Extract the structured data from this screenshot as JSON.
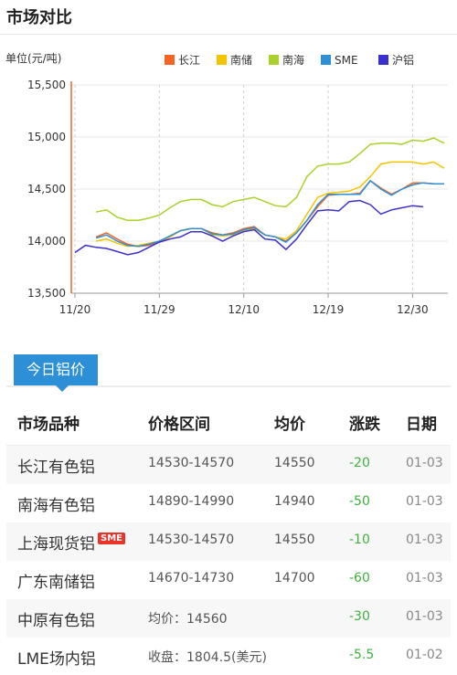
{
  "header": {
    "title": "市场对比"
  },
  "chart_data": {
    "type": "line",
    "unit_label": "单位(元/吨)",
    "yticks": [
      "15,500",
      "15,000",
      "14,500",
      "14,000",
      "13,500"
    ],
    "ylim": [
      13500,
      15500
    ],
    "xticks": [
      {
        "label": "11/20",
        "idx": 0
      },
      {
        "label": "11/29",
        "idx": 8
      },
      {
        "label": "12/10",
        "idx": 16
      },
      {
        "label": "12/19",
        "idx": 24
      },
      {
        "label": "12/30",
        "idx": 32
      }
    ],
    "x_count": 36,
    "series": [
      {
        "name": "长江",
        "color": "#f26522",
        "values": [
          null,
          null,
          14040,
          14080,
          14020,
          13970,
          13950,
          13960,
          13990,
          14040,
          14100,
          14120,
          14120,
          14080,
          14060,
          14080,
          14120,
          14140,
          14060,
          14040,
          14000,
          14080,
          14200,
          14330,
          14440,
          14450,
          14450,
          14460,
          14580,
          14510,
          14450,
          14500,
          14560,
          14560,
          14550,
          null
        ]
      },
      {
        "name": "南储",
        "color": "#f3c400",
        "values": [
          null,
          null,
          14000,
          14020,
          13980,
          13950,
          13960,
          13980,
          14000,
          14040,
          14100,
          14120,
          14120,
          14060,
          14050,
          14060,
          14100,
          14120,
          14060,
          14040,
          14020,
          14100,
          14260,
          14420,
          14460,
          14470,
          14480,
          14520,
          14620,
          14740,
          14760,
          14760,
          14760,
          14740,
          14760,
          14700
        ]
      },
      {
        "name": "南海",
        "color": "#a9d12a",
        "values": [
          null,
          null,
          14280,
          14300,
          14230,
          14200,
          14200,
          14220,
          14250,
          14320,
          14380,
          14400,
          14400,
          14350,
          14330,
          14380,
          14400,
          14420,
          14380,
          14340,
          14330,
          14420,
          14620,
          14720,
          14740,
          14740,
          14760,
          14840,
          14930,
          14940,
          14940,
          14930,
          14970,
          14960,
          14990,
          14940
        ]
      },
      {
        "name": "SME",
        "color": "#2d8fd5",
        "values": [
          null,
          null,
          14030,
          14060,
          14000,
          13960,
          13950,
          13970,
          14000,
          14050,
          14100,
          14120,
          14120,
          14070,
          14060,
          14070,
          14110,
          14130,
          14060,
          14040,
          13990,
          14080,
          14200,
          14350,
          14450,
          14450,
          14450,
          14450,
          14580,
          14500,
          14440,
          14500,
          14540,
          14560,
          14550,
          14550
        ]
      },
      {
        "name": "沪铝",
        "color": "#3a2fcf",
        "values": [
          13890,
          13960,
          13940,
          13930,
          13900,
          13870,
          13890,
          13940,
          13990,
          14020,
          14040,
          14090,
          14090,
          14050,
          14000,
          14050,
          14090,
          14110,
          14020,
          14010,
          13920,
          14020,
          14160,
          14290,
          14300,
          14290,
          14380,
          14390,
          14350,
          14260,
          14300,
          14320,
          14340,
          14330,
          null,
          null
        ]
      }
    ]
  },
  "tab": {
    "label": "今日铝价"
  },
  "table": {
    "headers": [
      "市场品种",
      "价格区间",
      "均价",
      "涨跌",
      "日期"
    ],
    "sme_badge": "SME",
    "rows": [
      {
        "market": "长江有色铝",
        "range": "14530-14570",
        "avg": "14550",
        "change": "-20",
        "date": "01-03"
      },
      {
        "market": "南海有色铝",
        "range": "14890-14990",
        "avg": "14940",
        "change": "-50",
        "date": "01-03"
      },
      {
        "market": "上海现货铝",
        "range": "14530-14570",
        "avg": "14550",
        "change": "-10",
        "date": "01-03"
      },
      {
        "market": "广东南储铝",
        "range": "14670-14730",
        "avg": "14700",
        "change": "-60",
        "date": "01-03"
      },
      {
        "market": "中原有色铝",
        "range": "均价：14560",
        "avg": "",
        "change": "-30",
        "date": "01-03"
      },
      {
        "market": "LME场内铝",
        "range": "收盘：1804.5(美元)",
        "avg": "",
        "change": "-5.5",
        "date": "01-02"
      }
    ]
  }
}
